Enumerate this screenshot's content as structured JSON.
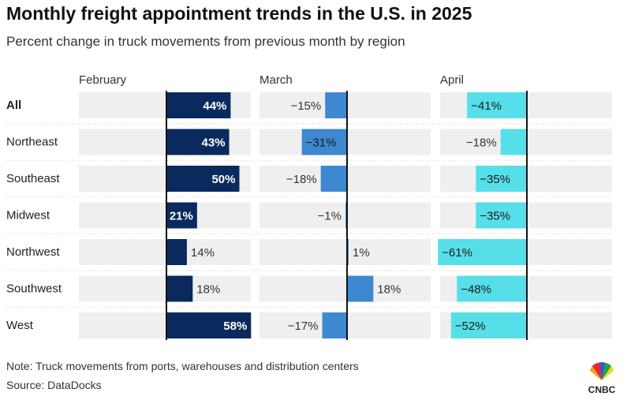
{
  "title": "Monthly freight appointment trends in the U.S. in 2025",
  "subtitle": "Percent change in truck movements from previous month by region",
  "note": "Note: Truck movements from ports, warehouses and distribution centers",
  "source": "Source: DataDocks",
  "logo_text": "CNBC",
  "colors": {
    "february": "#0a2a5e",
    "march": "#3d88cf",
    "april": "#56dfe8",
    "track": "#efefef",
    "zero_line": "#111111"
  },
  "chart_data": {
    "type": "bar",
    "orientation": "horizontal",
    "categories": [
      "All",
      "Northeast",
      "Southeast",
      "Midwest",
      "Northwest",
      "Southwest",
      "West"
    ],
    "series": [
      {
        "name": "February",
        "values": [
          44,
          43,
          50,
          21,
          14,
          18,
          58
        ],
        "labels": [
          "44%",
          "43%",
          "50%",
          "21%",
          "14%",
          "18%",
          "58%"
        ]
      },
      {
        "name": "March",
        "values": [
          -15,
          -31,
          -18,
          -1,
          1,
          18,
          -17
        ],
        "labels": [
          "−15%",
          "−31%",
          "−18%",
          "−1%",
          "1%",
          "18%",
          "−17%"
        ]
      },
      {
        "name": "April",
        "values": [
          -41,
          -18,
          -35,
          -35,
          -61,
          -48,
          -52
        ],
        "labels": [
          "−41%",
          "−18%",
          "−35%",
          "−35%",
          "−61%",
          "−48%",
          "−52%"
        ]
      }
    ],
    "xlim": [
      -61,
      58
    ],
    "title": "Monthly freight appointment trends in the U.S. in 2025",
    "xlabel": "",
    "ylabel": ""
  }
}
